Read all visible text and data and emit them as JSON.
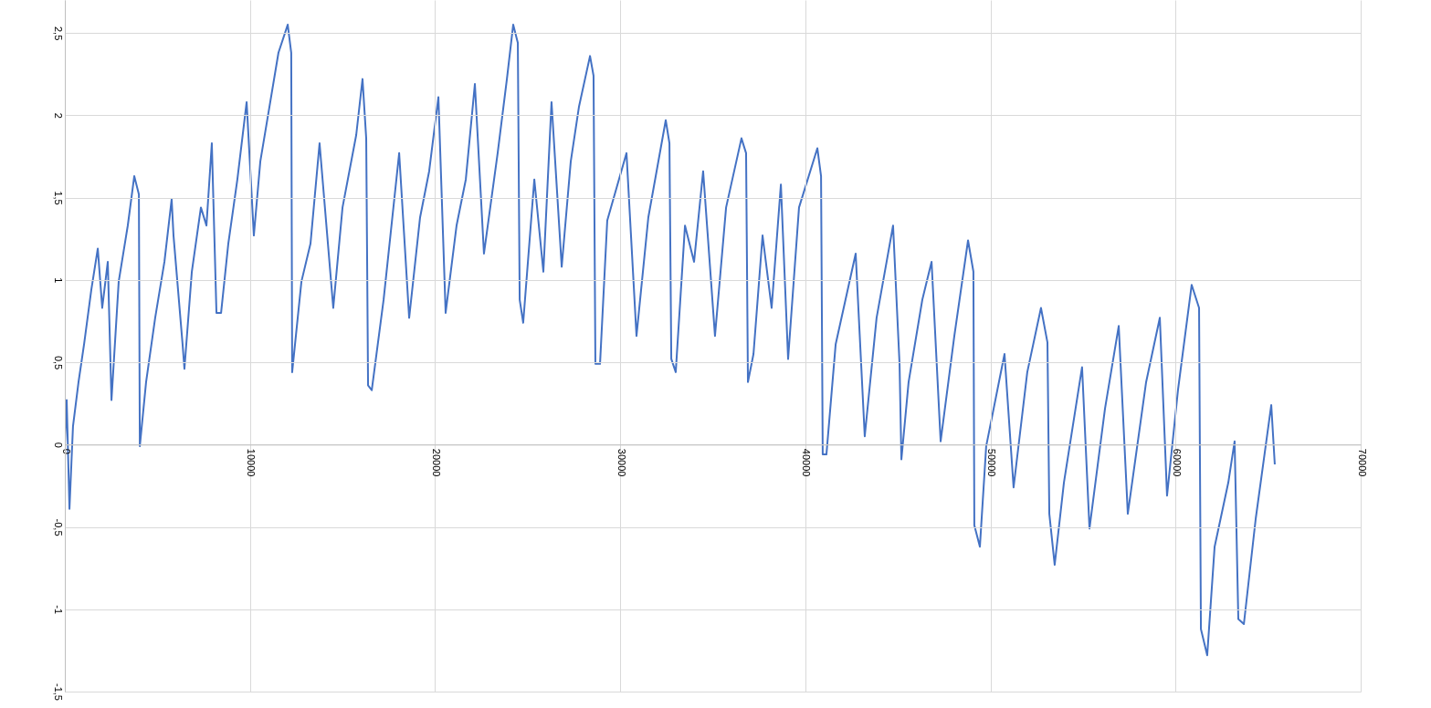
{
  "chart_data": {
    "type": "line",
    "color": "#4472c4",
    "grid": true,
    "line_style": "solid",
    "marker": "none",
    "xlim": [
      0,
      70000
    ],
    "xticks": [
      0,
      10000,
      20000,
      30000,
      40000,
      50000,
      60000,
      70000
    ],
    "ylim": [
      -1.5,
      2.7
    ],
    "yticks": [
      {
        "value": -1.5,
        "label": "-1,5"
      },
      {
        "value": -1,
        "label": "-1"
      },
      {
        "value": -0.5,
        "label": "-0,5"
      },
      {
        "value": 0,
        "label": "0"
      },
      {
        "value": 0.5,
        "label": "0,5"
      },
      {
        "value": 1,
        "label": "1"
      },
      {
        "value": 1.5,
        "label": "1,5"
      },
      {
        "value": 2,
        "label": "2"
      },
      {
        "value": 2.5,
        "label": "2,5"
      }
    ],
    "x": [
      0,
      100,
      250,
      440,
      740,
      1040,
      1430,
      1780,
      2020,
      2320,
      2520,
      2910,
      3400,
      3750,
      4000,
      4050,
      4390,
      4880,
      5380,
      5770,
      5870,
      6360,
      6460,
      6860,
      7350,
      7650,
      7940,
      8190,
      8440,
      8830,
      9320,
      9820,
      10210,
      10560,
      11050,
      11540,
      12040,
      12230,
      12280,
      12780,
      13270,
      13760,
      14500,
      15000,
      15740,
      16080,
      16280,
      16380,
      16580,
      17220,
      18060,
      18600,
      19190,
      19680,
      20180,
      20570,
      21160,
      21660,
      22150,
      22640,
      23380,
      23880,
      24220,
      24470,
      24570,
      24760,
      25360,
      25850,
      26290,
      26840,
      27330,
      27770,
      28370,
      28560,
      28660,
      28910,
      29300,
      30340,
      30880,
      31520,
      32460,
      32660,
      32760,
      33000,
      33500,
      33990,
      34480,
      35120,
      35720,
      36550,
      36800,
      36900,
      37200,
      37690,
      38180,
      38680,
      39070,
      39660,
      40650,
      40850,
      40940,
      41140,
      41640,
      42720,
      43210,
      43850,
      44740,
      45090,
      45190,
      45580,
      46320,
      46820,
      47310,
      48050,
      48790,
      49080,
      49130,
      49430,
      49770,
      50760,
      51250,
      51990,
      52730,
      53080,
      53180,
      53470,
      53970,
      54950,
      55350,
      56190,
      56930,
      57420,
      58410,
      59150,
      59540,
      60130,
      60870,
      61270,
      61370,
      61710,
      62110,
      62850,
      63190,
      63390,
      63690,
      64330,
      65170,
      65360
    ],
    "values": [
      0,
      0.27,
      -0.39,
      0.11,
      0.38,
      0.61,
      0.94,
      1.19,
      0.83,
      1.11,
      0.27,
      0.99,
      1.33,
      1.63,
      1.52,
      -0.01,
      0.38,
      0.77,
      1.11,
      1.49,
      1.27,
      0.61,
      0.46,
      1.05,
      1.44,
      1.33,
      1.83,
      0.8,
      0.8,
      1.22,
      1.61,
      2.08,
      1.27,
      1.72,
      2.05,
      2.38,
      2.55,
      2.38,
      0.44,
      0.99,
      1.22,
      1.83,
      0.83,
      1.44,
      1.88,
      2.22,
      1.86,
      0.36,
      0.33,
      0.88,
      1.77,
      0.77,
      1.38,
      1.66,
      2.11,
      0.8,
      1.33,
      1.61,
      2.19,
      1.16,
      1.77,
      2.22,
      2.55,
      2.44,
      0.88,
      0.74,
      1.61,
      1.05,
      2.08,
      1.08,
      1.72,
      2.05,
      2.36,
      2.24,
      0.49,
      0.49,
      1.36,
      1.77,
      0.66,
      1.38,
      1.97,
      1.83,
      0.52,
      0.44,
      1.33,
      1.11,
      1.66,
      0.66,
      1.44,
      1.86,
      1.77,
      0.38,
      0.55,
      1.27,
      0.83,
      1.58,
      0.52,
      1.44,
      1.8,
      1.63,
      -0.06,
      -0.06,
      0.61,
      1.16,
      0.05,
      0.77,
      1.33,
      0.49,
      -0.09,
      0.38,
      0.88,
      1.11,
      0.02,
      0.66,
      1.24,
      1.05,
      -0.49,
      -0.62,
      -0.01,
      0.55,
      -0.26,
      0.44,
      0.83,
      0.62,
      -0.42,
      -0.73,
      -0.23,
      0.47,
      -0.51,
      0.22,
      0.72,
      -0.42,
      0.38,
      0.77,
      -0.31,
      0.33,
      0.97,
      0.83,
      -1.12,
      -1.28,
      -0.62,
      -0.23,
      0.02,
      -1.06,
      -1.09,
      -0.45,
      0.24,
      -0.12
    ]
  }
}
